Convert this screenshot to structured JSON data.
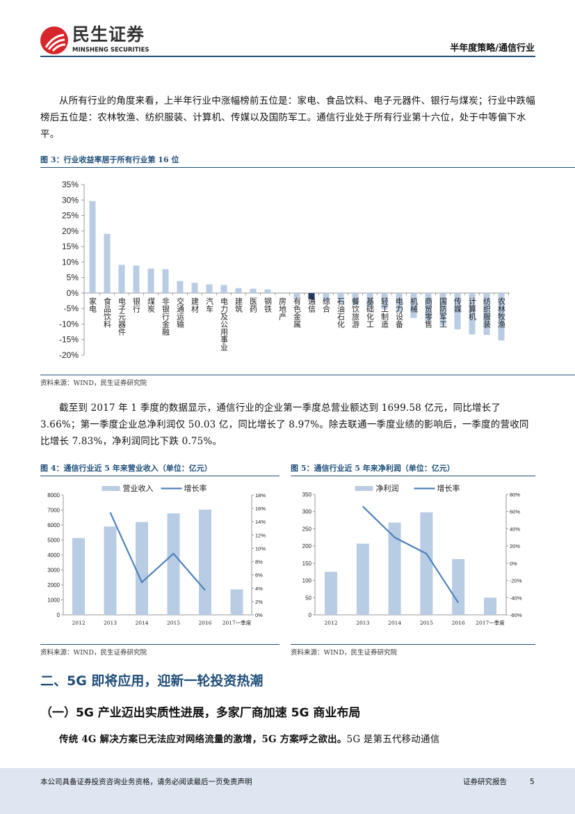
{
  "header": {
    "logo_cn": "民生证券",
    "logo_en": "MINSHENG SECURITIES",
    "right_title": "半年度策略/通信行业"
  },
  "paragraph1": "从所有行业的角度来看，上半年行业中涨幅榜前五位是：家电、食品饮料、电子元器件、银行与煤炭；行业中跌幅榜后五位是：农林牧渔、纺织服装、计算机、传媒以及国防军工。通信行业处于所有行业第十六位，处于中等偏下水平。",
  "figure3": {
    "title": "图 3：行业收益率居于所有行业第 16 位",
    "source": "资料来源：WIND，民生证券研究院"
  },
  "paragraph2": "截至到 2017 年 1 季度的数据显示，通信行业的企业第一季度总营业额达到 1699.58 亿元，同比增长了 3.66%；第一季度企业总净利润仅 50.03 亿，同比增长了 8.97%。除去联通一季度业绩的影响后，一季度的营收同比增长 7.83%，净利润同比下跌 0.75%。",
  "figure4": {
    "title": "图 4：通信行业近 5 年来营业收入（单位：亿元）",
    "source": "资料来源：WIND，民生证券研究院"
  },
  "figure5": {
    "title": "图 5：通信行业近 5 年来净利润（单位：亿元）",
    "source": "资料来源：WIND，民生证券研究院"
  },
  "section2": "二、5G 即将应用，迎新一轮投资热潮",
  "section2_1": "（一）5G 产业迈出实质性进展，多家厂商加速 5G 商业布局",
  "paragraph3_bold": "传统 4G 解决方案已无法应对网络流量的激增，5G 方案呼之欲出。",
  "paragraph3_rest": "5G 是第五代移动通信",
  "footer": {
    "disclaimer": "本公司具备证券投资咨询业务资格，请务必阅读最后一页免责声明",
    "report_type": "证券研究报告",
    "page": "5"
  },
  "colors": {
    "bar": "#b8cce4",
    "highlight": "#1f3864",
    "line": "#4f81bd",
    "brand": "#1f4e79",
    "logo_red": "#d7262b"
  },
  "chart_data": [
    {
      "type": "bar",
      "title": "",
      "ylim": [
        -20,
        35
      ],
      "yticks": [
        "35%",
        "30%",
        "25%",
        "20%",
        "15%",
        "10%",
        "5%",
        "0%",
        "-5%",
        "-10%",
        "-15%",
        "-20%"
      ],
      "unit": "%",
      "categories": [
        "家电",
        "食品饮料",
        "电子元器件",
        "银行",
        "煤炭",
        "非银行金融",
        "交通运输",
        "建材",
        "汽车",
        "电力及公用事业",
        "建筑",
        "医药",
        "钢铁",
        "房地产",
        "有色金属",
        "通信",
        "综合",
        "石油石化",
        "餐饮旅游",
        "基础化工",
        "轻工制造",
        "电力设备",
        "机械",
        "商贸零售",
        "国防军工",
        "传媒",
        "计算机",
        "纺织服装",
        "农林牧渔"
      ],
      "values": [
        29.7,
        19.1,
        9.1,
        8.9,
        7.9,
        7.7,
        3.9,
        3.3,
        2.8,
        2.6,
        1.6,
        1.4,
        1.2,
        -0.2,
        -1.6,
        -2.0,
        -2.6,
        -3.2,
        -3.8,
        -4.5,
        -5.3,
        -6.2,
        -8.0,
        -9.0,
        -10.5,
        -11.7,
        -13.3,
        -13.5,
        -15.3
      ],
      "highlight": "通信"
    },
    {
      "type": "bar+line",
      "categories": [
        "2012",
        "2013",
        "2014",
        "2015",
        "2016",
        "2017一季度"
      ],
      "series": [
        {
          "name": "营业收入",
          "type": "bar",
          "values": [
            5130,
            5900,
            6200,
            6780,
            7030,
            1700
          ]
        },
        {
          "name": "增长率",
          "type": "line",
          "axis": "right",
          "values": [
            null,
            15.4,
            4.9,
            9.2,
            3.7,
            null
          ]
        }
      ],
      "ylim": [
        0,
        8000
      ],
      "yticks": [
        "8000",
        "7000",
        "6000",
        "5000",
        "4000",
        "3000",
        "2000",
        "1000",
        "0"
      ],
      "y2lim": [
        0,
        18
      ],
      "y2ticks": [
        "18%",
        "16%",
        "14%",
        "12%",
        "10%",
        "8%",
        "6%",
        "4%",
        "2%",
        "0%"
      ],
      "legend": "top"
    },
    {
      "type": "bar+line",
      "categories": [
        "2012",
        "2013",
        "2014",
        "2015",
        "2016",
        "2017一季度"
      ],
      "series": [
        {
          "name": "净利润",
          "type": "bar",
          "values": [
            125,
            207,
            268,
            298,
            162,
            50
          ]
        },
        {
          "name": "增长率",
          "type": "line",
          "axis": "right",
          "values": [
            null,
            66,
            30,
            11,
            -46,
            null
          ]
        }
      ],
      "ylim": [
        0,
        350
      ],
      "yticks": [
        "350",
        "300",
        "250",
        "200",
        "150",
        "100",
        "50",
        "0"
      ],
      "y2lim": [
        -60,
        80
      ],
      "y2ticks": [
        "80%",
        "60%",
        "40%",
        "20%",
        "0%",
        "-20%",
        "-40%",
        "-60%"
      ],
      "legend": "top"
    }
  ]
}
